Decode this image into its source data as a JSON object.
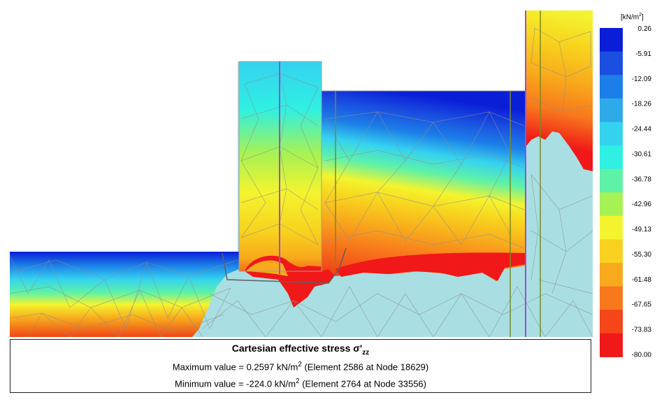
{
  "legend": {
    "unit_base": "[kN/m",
    "unit_exp": "2",
    "unit_close": "]",
    "colors": [
      "#0a1ed8",
      "#1a4fe0",
      "#1c7ee8",
      "#2eaae8",
      "#35d2f0",
      "#2ff0e2",
      "#5ef2a8",
      "#a6f254",
      "#f4f42e",
      "#f8d21e",
      "#f8aa1c",
      "#f8781c",
      "#f44618",
      "#f01818"
    ],
    "labels": [
      "0.26",
      "-5.91",
      "-12.09",
      "-18.26",
      "-24.44",
      "-30.61",
      "-36.78",
      "-42.96",
      "-49.13",
      "-55.30",
      "-61.48",
      "-67.65",
      "-73.83",
      "-80.00"
    ]
  },
  "caption": {
    "title_main": "Cartesian effective stress σ'",
    "title_sub": "zz",
    "max_prefix": "Maximum value = 0.2597 kN/m",
    "max_exp": "2",
    "max_suffix": " (Element 2586 at Node 18629)",
    "min_prefix": "Minimum value = -224.0 kN/m",
    "min_exp": "2",
    "min_suffix": " (Element 2764 at Node 33556)"
  },
  "colors": {
    "soil_unstressed": "#a9dfe3",
    "mesh_line": "#8f8f8f",
    "wall_purple": "#9b4fd0",
    "wall_olive": "#7a8a20"
  }
}
